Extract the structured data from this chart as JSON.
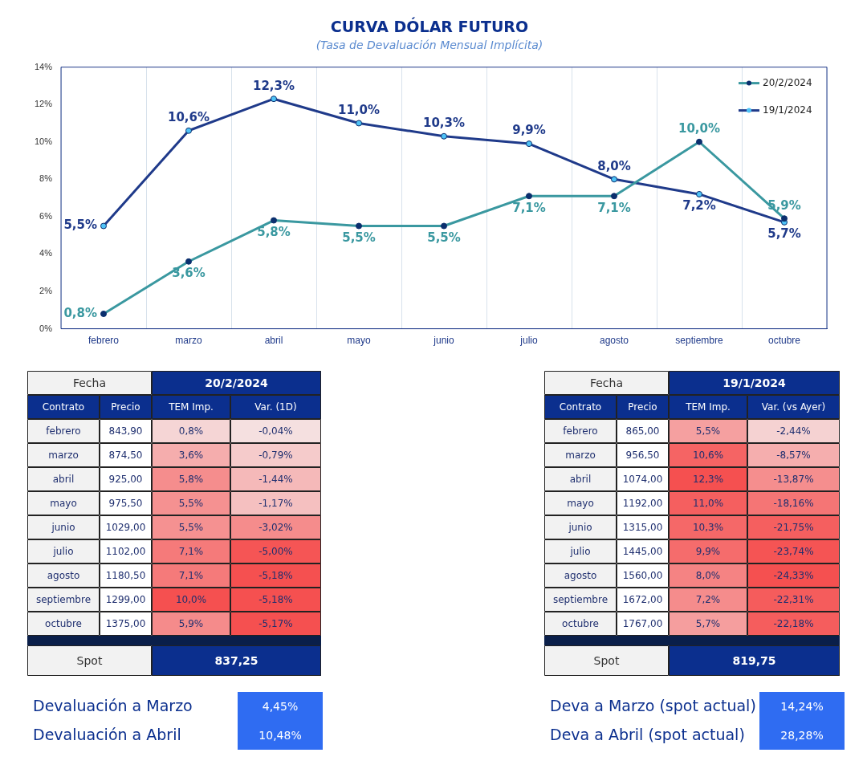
{
  "chart_data": [
    {
      "type": "line",
      "title": "CURVA DÓLAR FUTURO",
      "subtitle": "(Tasa de Devaluación Mensual Implícita)",
      "categories": [
        "febrero",
        "marzo",
        "abril",
        "mayo",
        "junio",
        "julio",
        "agosto",
        "septiembre",
        "octubre"
      ],
      "series": [
        {
          "name": "20/2/2024",
          "color": "#3a98a0",
          "values": [
            0.8,
            3.6,
            5.8,
            5.5,
            5.5,
            7.1,
            7.1,
            10.0,
            5.9
          ],
          "value_labels": [
            "0,8%",
            "3,6%",
            "5,8%",
            "5,5%",
            "5,5%",
            "7,1%",
            "7,1%",
            "10,0%",
            "5,9%"
          ]
        },
        {
          "name": "19/1/2024",
          "color": "#1f3a8a",
          "values": [
            5.5,
            10.6,
            12.3,
            11.0,
            10.3,
            9.9,
            8.0,
            7.2,
            5.7
          ],
          "value_labels": [
            "5,5%",
            "10,6%",
            "12,3%",
            "11,0%",
            "10,3%",
            "9,9%",
            "8,0%",
            "7,2%",
            "5,7%"
          ]
        }
      ],
      "ylim": [
        0,
        14
      ],
      "yticks": [
        {
          "value": 0,
          "label": "0%"
        },
        {
          "value": 2,
          "label": "2%"
        },
        {
          "value": 4,
          "label": "4%"
        },
        {
          "value": 6,
          "label": "6%"
        },
        {
          "value": 8,
          "label": "8%"
        },
        {
          "value": 10,
          "label": "10%"
        },
        {
          "value": 12,
          "label": "12%"
        },
        {
          "value": 14,
          "label": "14%"
        }
      ],
      "grid": "x",
      "legend": "top right",
      "marker": "circle",
      "line_style": "solid"
    },
    {
      "type": "heatmap",
      "title": "20/2/2024",
      "ylabel": "Contrato",
      "categories": [
        "Precio",
        "TEM Imp.",
        "Var. (1D)"
      ],
      "y_categories": [
        "febrero",
        "marzo",
        "abril",
        "mayo",
        "junio",
        "julio",
        "agosto",
        "septiembre",
        "octubre"
      ],
      "cells": [
        [
          843.9,
          0.8,
          -0.04
        ],
        [
          874.5,
          3.6,
          -0.79
        ],
        [
          925.0,
          5.8,
          -1.44
        ],
        [
          975.5,
          5.5,
          -1.17
        ],
        [
          1029.0,
          5.5,
          -3.02
        ],
        [
          1102.0,
          7.1,
          -5.0
        ],
        [
          1180.5,
          7.1,
          -5.18
        ],
        [
          1299.0,
          10.0,
          -5.18
        ],
        [
          1375.0,
          5.9,
          -5.17
        ]
      ],
      "cell_labels": [
        [
          "843,90",
          "0,8%",
          "-0,04%"
        ],
        [
          "874,50",
          "3,6%",
          "-0,79%"
        ],
        [
          "925,00",
          "5,8%",
          "-1,44%"
        ],
        [
          "975,50",
          "5,5%",
          "-1,17%"
        ],
        [
          "1029,00",
          "5,5%",
          "-3,02%"
        ],
        [
          "1102,00",
          "7,1%",
          "-5,00%"
        ],
        [
          "1180,50",
          "7,1%",
          "-5,18%"
        ],
        [
          "1299,00",
          "10,0%",
          "-5,18%"
        ],
        [
          "1375,00",
          "5,9%",
          "-5,17%"
        ]
      ],
      "annotations": [
        "Fecha",
        "Spot",
        "837,25"
      ]
    },
    {
      "type": "heatmap",
      "title": "19/1/2024",
      "ylabel": "Contrato",
      "categories": [
        "Precio",
        "TEM Imp.",
        "Var. (vs Ayer)"
      ],
      "y_categories": [
        "febrero",
        "marzo",
        "abril",
        "mayo",
        "junio",
        "julio",
        "agosto",
        "septiembre",
        "octubre"
      ],
      "cells": [
        [
          865.0,
          5.5,
          -2.44
        ],
        [
          956.5,
          10.6,
          -8.57
        ],
        [
          1074.0,
          12.3,
          -13.87
        ],
        [
          1192.0,
          11.0,
          -18.16
        ],
        [
          1315.0,
          10.3,
          -21.75
        ],
        [
          1445.0,
          9.9,
          -23.74
        ],
        [
          1560.0,
          8.0,
          -24.33
        ],
        [
          1672.0,
          7.2,
          -22.31
        ],
        [
          1767.0,
          5.7,
          -22.18
        ]
      ],
      "cell_labels": [
        [
          "865,00",
          "5,5%",
          "-2,44%"
        ],
        [
          "956,50",
          "10,6%",
          "-8,57%"
        ],
        [
          "1074,00",
          "12,3%",
          "-13,87%"
        ],
        [
          "1192,00",
          "11,0%",
          "-18,16%"
        ],
        [
          "1315,00",
          "10,3%",
          "-21,75%"
        ],
        [
          "1445,00",
          "9,9%",
          "-23,74%"
        ],
        [
          "1560,00",
          "8,0%",
          "-24,33%"
        ],
        [
          "1672,00",
          "7,2%",
          "-22,31%"
        ],
        [
          "1767,00",
          "5,7%",
          "-22,18%"
        ]
      ],
      "annotations": [
        "Fecha",
        "Spot",
        "819,75"
      ]
    },
    {
      "type": "other",
      "categories": [
        "Devaluación a Marzo",
        "Devaluación a Abril"
      ],
      "value_labels": [
        "4,45%",
        "10,48%"
      ]
    },
    {
      "type": "other",
      "categories": [
        "Deva a Marzo (spot actual)",
        "Deva a Abril (spot actual)"
      ],
      "value_labels": [
        "14,24%",
        "28,28%"
      ]
    }
  ]
}
